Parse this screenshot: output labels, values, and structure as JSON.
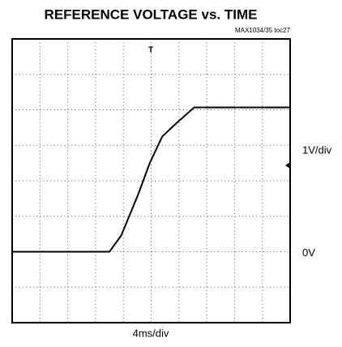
{
  "chart_data": {
    "type": "line",
    "title": "REFERENCE VOLTAGE vs. TIME",
    "subtitle": "MAX1034/35 toc27",
    "x_label": "4ms/div",
    "y_label": "1V/div",
    "zero_label": "0V",
    "trigger_label": "T",
    "x": [
      0,
      14.0,
      15.7,
      18.1,
      19.8,
      21.6,
      23.5,
      26.2,
      40
    ],
    "series": [
      {
        "color": "#000000",
        "values": [
          0,
          0,
          0.46,
          1.6,
          2.5,
          3.25,
          3.6,
          4.07,
          4.07
        ]
      }
    ],
    "xlim": [
      0,
      40
    ],
    "ylim": [
      -2,
      6
    ],
    "xticks": [
      4,
      8,
      12,
      16,
      20,
      24,
      28,
      32,
      36
    ],
    "yticks": [
      -1,
      0,
      1,
      2,
      3,
      4,
      5
    ],
    "grid": true
  }
}
